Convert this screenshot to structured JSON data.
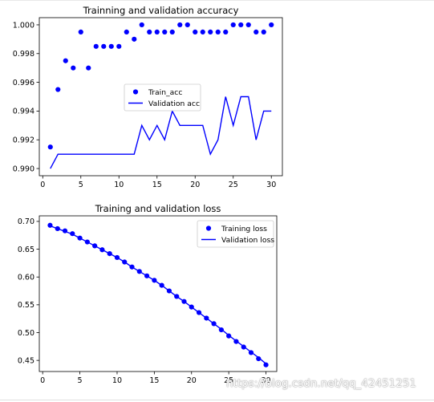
{
  "watermark": "https://blog.csdn.net/qq_42451251",
  "chart_data": [
    {
      "type": "line",
      "title": "Trainning and validation accuracy",
      "xlabel": "",
      "ylabel": "",
      "xlim": [
        -0.45,
        31.45
      ],
      "ylim": [
        0.9895,
        1.0005
      ],
      "xticks": [
        0,
        5,
        10,
        15,
        20,
        25,
        30
      ],
      "yticks": [
        0.99,
        0.992,
        0.994,
        0.996,
        0.998,
        1.0
      ],
      "ytick_labels": [
        "0.990",
        "0.992",
        "0.994",
        "0.996",
        "0.998",
        "1.000"
      ],
      "legend_position": "center-right",
      "grid": false,
      "color": "#0000ff",
      "series": [
        {
          "name": "Train_acc",
          "style": "dots",
          "x": [
            1,
            2,
            3,
            4,
            5,
            6,
            7,
            8,
            9,
            10,
            11,
            12,
            13,
            14,
            15,
            16,
            17,
            18,
            19,
            20,
            21,
            22,
            23,
            24,
            25,
            26,
            27,
            28,
            29,
            30
          ],
          "values": [
            0.9915,
            0.9955,
            0.9975,
            0.997,
            0.9995,
            0.997,
            0.9985,
            0.9985,
            0.9985,
            0.9985,
            0.9995,
            0.999,
            1.0,
            0.9995,
            0.9995,
            0.9995,
            0.9995,
            1.0,
            1.0,
            0.9995,
            0.9995,
            0.9995,
            0.9995,
            0.9995,
            1.0,
            1.0,
            1.0,
            0.9995,
            0.9995,
            1.0
          ]
        },
        {
          "name": "Validation acc",
          "style": "line",
          "x": [
            1,
            2,
            3,
            4,
            5,
            6,
            7,
            8,
            9,
            10,
            11,
            12,
            13,
            14,
            15,
            16,
            17,
            18,
            19,
            20,
            21,
            22,
            23,
            24,
            25,
            26,
            27,
            28,
            29,
            30
          ],
          "values": [
            0.99,
            0.991,
            0.991,
            0.991,
            0.991,
            0.991,
            0.991,
            0.991,
            0.991,
            0.991,
            0.991,
            0.991,
            0.993,
            0.992,
            0.993,
            0.992,
            0.994,
            0.993,
            0.993,
            0.993,
            0.993,
            0.991,
            0.992,
            0.995,
            0.993,
            0.995,
            0.995,
            0.992,
            0.994,
            0.994
          ]
        }
      ]
    },
    {
      "type": "line",
      "title": "Training and validation loss",
      "xlabel": "",
      "ylabel": "",
      "xlim": [
        -0.45,
        31.45
      ],
      "ylim": [
        0.43,
        0.71
      ],
      "xticks": [
        0,
        5,
        10,
        15,
        20,
        25,
        30
      ],
      "yticks": [
        0.45,
        0.5,
        0.55,
        0.6,
        0.65,
        0.7
      ],
      "ytick_labels": [
        "0.45",
        "0.50",
        "0.55",
        "0.60",
        "0.65",
        "0.70"
      ],
      "legend_position": "top-right",
      "grid": false,
      "color": "#0000ff",
      "series": [
        {
          "name": "Training loss",
          "style": "dots",
          "x": [
            1,
            2,
            3,
            4,
            5,
            6,
            7,
            8,
            9,
            10,
            11,
            12,
            13,
            14,
            15,
            16,
            17,
            18,
            19,
            20,
            21,
            22,
            23,
            24,
            25,
            26,
            27,
            28,
            29,
            30
          ],
          "values": [
            0.693,
            0.687,
            0.683,
            0.678,
            0.67,
            0.663,
            0.656,
            0.649,
            0.642,
            0.635,
            0.627,
            0.618,
            0.61,
            0.602,
            0.594,
            0.585,
            0.575,
            0.565,
            0.556,
            0.546,
            0.536,
            0.526,
            0.516,
            0.505,
            0.494,
            0.484,
            0.474,
            0.464,
            0.453,
            0.442
          ]
        },
        {
          "name": "Validation loss",
          "style": "line",
          "x": [
            1,
            2,
            3,
            4,
            5,
            6,
            7,
            8,
            9,
            10,
            11,
            12,
            13,
            14,
            15,
            16,
            17,
            18,
            19,
            20,
            21,
            22,
            23,
            24,
            25,
            26,
            27,
            28,
            29,
            30
          ],
          "values": [
            0.692,
            0.687,
            0.682,
            0.677,
            0.67,
            0.663,
            0.656,
            0.649,
            0.642,
            0.635,
            0.627,
            0.618,
            0.61,
            0.602,
            0.594,
            0.585,
            0.575,
            0.565,
            0.556,
            0.546,
            0.536,
            0.526,
            0.516,
            0.506,
            0.495,
            0.485,
            0.475,
            0.465,
            0.455,
            0.444
          ]
        }
      ]
    }
  ]
}
